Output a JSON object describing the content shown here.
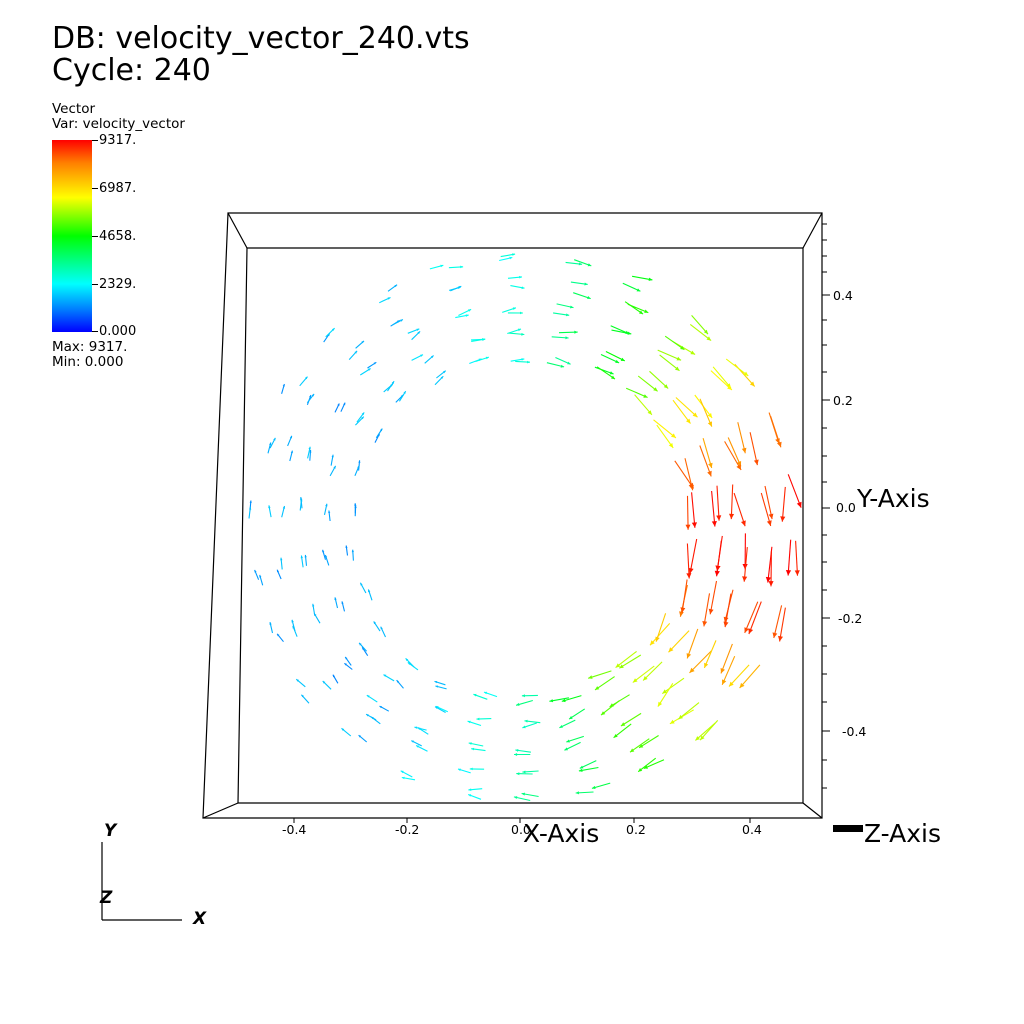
{
  "header": {
    "db_line": "DB: velocity_vector_240.vts",
    "cycle_line": "Cycle: 240"
  },
  "legend": {
    "plot_type": "Vector",
    "variable": "Var: velocity_vector",
    "tick_labels": [
      "9317.",
      "6987.",
      "4658.",
      "2329.",
      "0.000"
    ],
    "max_line": "Max:  9317.",
    "min_line": "Min:  0.000"
  },
  "axes": {
    "x_title": "X-Axis",
    "y_title": "Y-Axis",
    "z_title": "Z-Axis",
    "x_ticks": [
      "-0.4",
      "-0.2",
      "0.0",
      "0.2",
      "0.4"
    ],
    "y_ticks": [
      "0.4",
      "0.2",
      "0.0",
      "-0.2",
      "-0.4"
    ]
  },
  "triad": {
    "x": "X",
    "y": "Y",
    "z": "Z"
  },
  "colors": {
    "colormap": [
      "#0000ff",
      "#00ffff",
      "#00ff00",
      "#ffff00",
      "#ff0000"
    ]
  }
}
